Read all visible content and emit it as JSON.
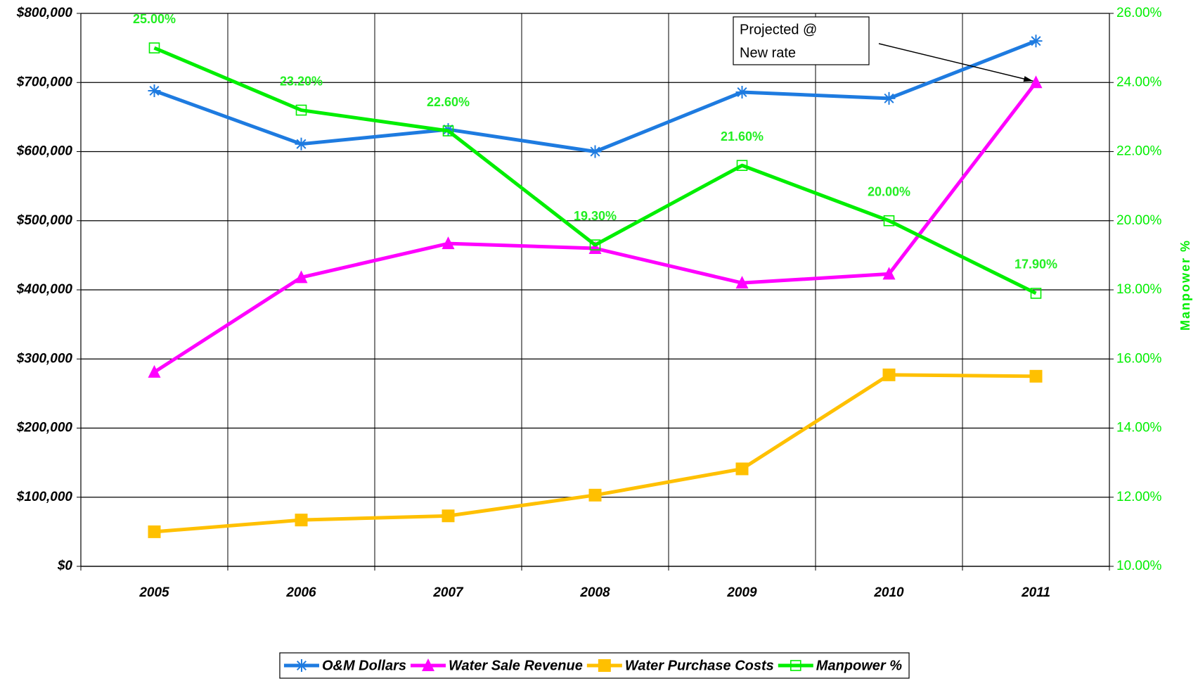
{
  "chart_data": {
    "type": "line",
    "categories": [
      "2005",
      "2006",
      "2007",
      "2008",
      "2009",
      "2010",
      "2011"
    ],
    "series": [
      {
        "name": "O&M Dollars",
        "color": "#1e7be0",
        "marker": "asterisk",
        "values": [
          688000,
          611000,
          632000,
          600000,
          686000,
          677000,
          760000
        ]
      },
      {
        "name": "Water Sale Revenue",
        "color": "#ff00ff",
        "marker": "triangle",
        "values": [
          281000,
          418000,
          467000,
          460000,
          410000,
          423000,
          700000
        ]
      },
      {
        "name": "Water Purchase Costs",
        "color": "#ffc000",
        "marker": "square",
        "values": [
          50000,
          67000,
          73000,
          103000,
          141000,
          277000,
          275000
        ]
      },
      {
        "name": "Manpower %",
        "color": "#00ee00",
        "marker": "hollow-square",
        "axis": "y2",
        "values": [
          25,
          23.2,
          22.6,
          19.3,
          21.6,
          20,
          17.9
        ],
        "value_labels": [
          "25.00%",
          "23.20%",
          "22.60%",
          "19.30%",
          "21.60%",
          "20.00%",
          "17.90%"
        ]
      }
    ],
    "ylim": [
      0,
      800000
    ],
    "yticks": [
      {
        "value": 0,
        "label": "$0"
      },
      {
        "value": 100000,
        "label": "$100,000"
      },
      {
        "value": 200000,
        "label": "$200,000"
      },
      {
        "value": 300000,
        "label": "$300,000"
      },
      {
        "value": 400000,
        "label": "$400,000"
      },
      {
        "value": 500000,
        "label": "$500,000"
      },
      {
        "value": 600000,
        "label": "$600,000"
      },
      {
        "value": 700000,
        "label": "$700,000"
      },
      {
        "value": 800000,
        "label": "$800,000"
      }
    ],
    "y2lim": [
      10,
      26
    ],
    "y2ticks": [
      {
        "value": 10,
        "label": "10.00%"
      },
      {
        "value": 12,
        "label": "12.00%"
      },
      {
        "value": 14,
        "label": "14.00%"
      },
      {
        "value": 16,
        "label": "16.00%"
      },
      {
        "value": 18,
        "label": "18.00%"
      },
      {
        "value": 20,
        "label": "20.00%"
      },
      {
        "value": 22,
        "label": "22.00%"
      },
      {
        "value": 24,
        "label": "24.00%"
      },
      {
        "value": 26,
        "label": "26.00%"
      }
    ],
    "y2label": "Manpower %",
    "annotation": [
      "Projected @",
      "New rate"
    ],
    "grid": true,
    "legend": "bottom"
  }
}
